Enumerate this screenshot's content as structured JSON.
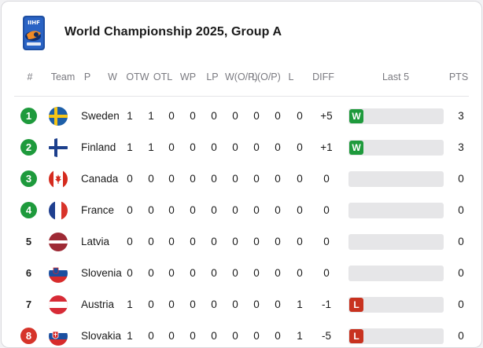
{
  "header": {
    "title": "World Championship 2025, Group A",
    "logo_text": "IIHF"
  },
  "columns": [
    "#",
    "Team",
    "P",
    "W",
    "OTW",
    "OTL",
    "WP",
    "LP",
    "W(O/P)",
    "L(O/P)",
    "L",
    "DIFF",
    "Last 5",
    "PTS"
  ],
  "rows": [
    {
      "rank": "1",
      "rank_style": "q",
      "team": "Sweden",
      "flag": "sweden",
      "vals": [
        "1",
        "1",
        "0",
        "0",
        "0",
        "0",
        "0",
        "0",
        "0"
      ],
      "diff": "+5",
      "last5": [
        "W"
      ],
      "pts": "3"
    },
    {
      "rank": "2",
      "rank_style": "q",
      "team": "Finland",
      "flag": "finland",
      "vals": [
        "1",
        "1",
        "0",
        "0",
        "0",
        "0",
        "0",
        "0",
        "0"
      ],
      "diff": "+1",
      "last5": [
        "W"
      ],
      "pts": "3"
    },
    {
      "rank": "3",
      "rank_style": "q",
      "team": "Canada",
      "flag": "canada",
      "vals": [
        "0",
        "0",
        "0",
        "0",
        "0",
        "0",
        "0",
        "0",
        "0"
      ],
      "diff": "0",
      "last5": [],
      "pts": "0"
    },
    {
      "rank": "4",
      "rank_style": "q",
      "team": "France",
      "flag": "france",
      "vals": [
        "0",
        "0",
        "0",
        "0",
        "0",
        "0",
        "0",
        "0",
        "0"
      ],
      "diff": "0",
      "last5": [],
      "pts": "0"
    },
    {
      "rank": "5",
      "rank_style": "n",
      "team": "Latvia",
      "flag": "latvia",
      "vals": [
        "0",
        "0",
        "0",
        "0",
        "0",
        "0",
        "0",
        "0",
        "0"
      ],
      "diff": "0",
      "last5": [],
      "pts": "0"
    },
    {
      "rank": "6",
      "rank_style": "n",
      "team": "Slovenia",
      "flag": "slovenia",
      "vals": [
        "0",
        "0",
        "0",
        "0",
        "0",
        "0",
        "0",
        "0",
        "0"
      ],
      "diff": "0",
      "last5": [],
      "pts": "0"
    },
    {
      "rank": "7",
      "rank_style": "n",
      "team": "Austria",
      "flag": "austria",
      "vals": [
        "1",
        "0",
        "0",
        "0",
        "0",
        "0",
        "0",
        "0",
        "1"
      ],
      "diff": "-1",
      "last5": [
        "L"
      ],
      "pts": "0"
    },
    {
      "rank": "8",
      "rank_style": "r",
      "team": "Slovakia",
      "flag": "slovakia",
      "vals": [
        "1",
        "0",
        "0",
        "0",
        "0",
        "0",
        "0",
        "0",
        "1"
      ],
      "diff": "-5",
      "last5": [
        "L"
      ],
      "pts": "0"
    }
  ],
  "colors": {
    "qualify": "#1e9a3c",
    "relegate": "#d6342a",
    "win": "#1e9a3c",
    "loss": "#c8321f"
  }
}
